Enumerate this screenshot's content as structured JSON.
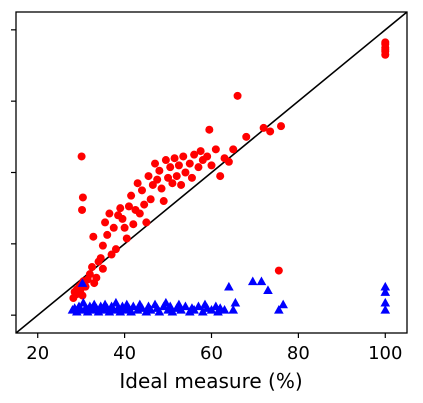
{
  "chart_data": {
    "type": "scatter",
    "xlabel": "Ideal measure (%)",
    "ylabel": "",
    "x_ticks": [
      "20",
      "40",
      "60",
      "80",
      "100"
    ],
    "xlim": [
      15,
      105
    ],
    "ylim": [
      15,
      105
    ],
    "reference_line": {
      "from": [
        15,
        15
      ],
      "to": [
        105,
        105
      ],
      "color": "#000000"
    },
    "series": [
      {
        "marker": "circle",
        "color": "#ff0000",
        "points": [
          [
            28.2,
            24.8
          ],
          [
            28.5,
            26.5
          ],
          [
            28.8,
            25.8
          ],
          [
            29.0,
            27.2
          ],
          [
            29.3,
            26.0
          ],
          [
            29.6,
            28.0
          ],
          [
            29.8,
            27.0
          ],
          [
            30.0,
            28.5
          ],
          [
            30.3,
            25.5
          ],
          [
            30.5,
            29.5
          ],
          [
            30.2,
            49.5
          ],
          [
            30.4,
            53.0
          ],
          [
            30.1,
            64.5
          ],
          [
            31.0,
            28.0
          ],
          [
            31.5,
            30.0
          ],
          [
            32.0,
            31.5
          ],
          [
            32.5,
            33.5
          ],
          [
            32.8,
            42.0
          ],
          [
            33.0,
            29.0
          ],
          [
            33.5,
            30.5
          ],
          [
            34.0,
            35.0
          ],
          [
            34.5,
            36.0
          ],
          [
            35.0,
            33.0
          ],
          [
            35.0,
            39.5
          ],
          [
            35.5,
            46.0
          ],
          [
            36.0,
            42.5
          ],
          [
            36.5,
            48.5
          ],
          [
            37.0,
            37.0
          ],
          [
            37.5,
            44.5
          ],
          [
            38.0,
            38.5
          ],
          [
            38.5,
            48.0
          ],
          [
            39.0,
            50.0
          ],
          [
            39.5,
            47.0
          ],
          [
            40.0,
            44.5
          ],
          [
            40.5,
            41.5
          ],
          [
            41.0,
            50.5
          ],
          [
            41.5,
            53.5
          ],
          [
            42.0,
            45.5
          ],
          [
            42.5,
            49.5
          ],
          [
            43.0,
            57.0
          ],
          [
            43.5,
            48.5
          ],
          [
            44.0,
            55.0
          ],
          [
            44.5,
            51.0
          ],
          [
            45.0,
            46.0
          ],
          [
            45.5,
            59.0
          ],
          [
            46.0,
            52.5
          ],
          [
            46.5,
            56.5
          ],
          [
            47.0,
            62.5
          ],
          [
            47.5,
            58.0
          ],
          [
            48.0,
            60.5
          ],
          [
            48.5,
            55.5
          ],
          [
            49.0,
            52.0
          ],
          [
            49.5,
            63.5
          ],
          [
            50.0,
            58.5
          ],
          [
            50.5,
            61.5
          ],
          [
            51.0,
            57.0
          ],
          [
            51.5,
            64.0
          ],
          [
            52.0,
            59.0
          ],
          [
            52.5,
            62.0
          ],
          [
            53.0,
            56.5
          ],
          [
            53.5,
            64.5
          ],
          [
            54.0,
            60.0
          ],
          [
            55.0,
            62.5
          ],
          [
            55.5,
            58.5
          ],
          [
            56.0,
            65.0
          ],
          [
            57.0,
            61.5
          ],
          [
            57.5,
            66.0
          ],
          [
            58.0,
            63.5
          ],
          [
            59.0,
            64.5
          ],
          [
            59.5,
            72.0
          ],
          [
            60.0,
            62.0
          ],
          [
            61.0,
            66.5
          ],
          [
            62.0,
            59.0
          ],
          [
            63.0,
            64.0
          ],
          [
            64.0,
            63.0
          ],
          [
            65.0,
            66.5
          ],
          [
            66.0,
            81.5
          ],
          [
            68.0,
            70.0
          ],
          [
            72.0,
            72.5
          ],
          [
            73.5,
            71.5
          ],
          [
            76.0,
            73.0
          ],
          [
            75.5,
            32.5
          ],
          [
            100.0,
            93.0
          ],
          [
            100.0,
            94.0
          ],
          [
            100.0,
            94.5
          ],
          [
            100.0,
            95.0
          ],
          [
            100.0,
            96.0
          ],
          [
            100.0,
            96.5
          ]
        ]
      },
      {
        "marker": "triangle",
        "color": "#0000ff",
        "points": [
          [
            28.0,
            21.5
          ],
          [
            28.5,
            22.0
          ],
          [
            29.0,
            21.0
          ],
          [
            29.5,
            22.5
          ],
          [
            30.0,
            21.5
          ],
          [
            30.3,
            29.0
          ],
          [
            30.5,
            23.5
          ],
          [
            31.0,
            22.0
          ],
          [
            31.5,
            21.0
          ],
          [
            32.0,
            22.5
          ],
          [
            32.5,
            21.5
          ],
          [
            33.0,
            23.0
          ],
          [
            33.5,
            22.0
          ],
          [
            34.0,
            21.0
          ],
          [
            34.5,
            22.5
          ],
          [
            35.0,
            21.5
          ],
          [
            35.5,
            23.0
          ],
          [
            36.0,
            22.0
          ],
          [
            36.5,
            21.0
          ],
          [
            37.0,
            22.5
          ],
          [
            37.5,
            21.5
          ],
          [
            38.0,
            23.5
          ],
          [
            38.5,
            22.0
          ],
          [
            39.0,
            21.0
          ],
          [
            39.5,
            22.5
          ],
          [
            40.0,
            21.5
          ],
          [
            40.5,
            23.0
          ],
          [
            41.0,
            22.0
          ],
          [
            41.5,
            21.0
          ],
          [
            42.0,
            22.5
          ],
          [
            43.0,
            21.5
          ],
          [
            43.5,
            23.0
          ],
          [
            44.0,
            22.0
          ],
          [
            45.0,
            21.0
          ],
          [
            45.5,
            22.5
          ],
          [
            46.0,
            21.5
          ],
          [
            47.0,
            23.0
          ],
          [
            47.5,
            22.0
          ],
          [
            48.0,
            21.0
          ],
          [
            49.0,
            22.5
          ],
          [
            49.5,
            23.5
          ],
          [
            50.0,
            21.5
          ],
          [
            50.5,
            22.5
          ],
          [
            51.0,
            21.0
          ],
          [
            52.0,
            22.0
          ],
          [
            52.5,
            23.0
          ],
          [
            53.0,
            21.5
          ],
          [
            54.0,
            22.5
          ],
          [
            55.0,
            21.0
          ],
          [
            55.5,
            22.0
          ],
          [
            56.0,
            21.5
          ],
          [
            57.0,
            22.5
          ],
          [
            58.0,
            21.0
          ],
          [
            58.5,
            23.0
          ],
          [
            59.0,
            22.0
          ],
          [
            60.0,
            21.5
          ],
          [
            61.0,
            22.5
          ],
          [
            61.5,
            21.0
          ],
          [
            62.0,
            22.0
          ],
          [
            63.0,
            21.5
          ],
          [
            64.0,
            28.0
          ],
          [
            65.0,
            21.5
          ],
          [
            65.5,
            23.5
          ],
          [
            69.5,
            29.5
          ],
          [
            71.5,
            29.5
          ],
          [
            73.0,
            27.0
          ],
          [
            75.5,
            21.5
          ],
          [
            76.5,
            23.0
          ],
          [
            100.0,
            21.5
          ],
          [
            100.0,
            23.5
          ],
          [
            100.0,
            26.5
          ],
          [
            100.0,
            28.0
          ]
        ]
      }
    ]
  }
}
